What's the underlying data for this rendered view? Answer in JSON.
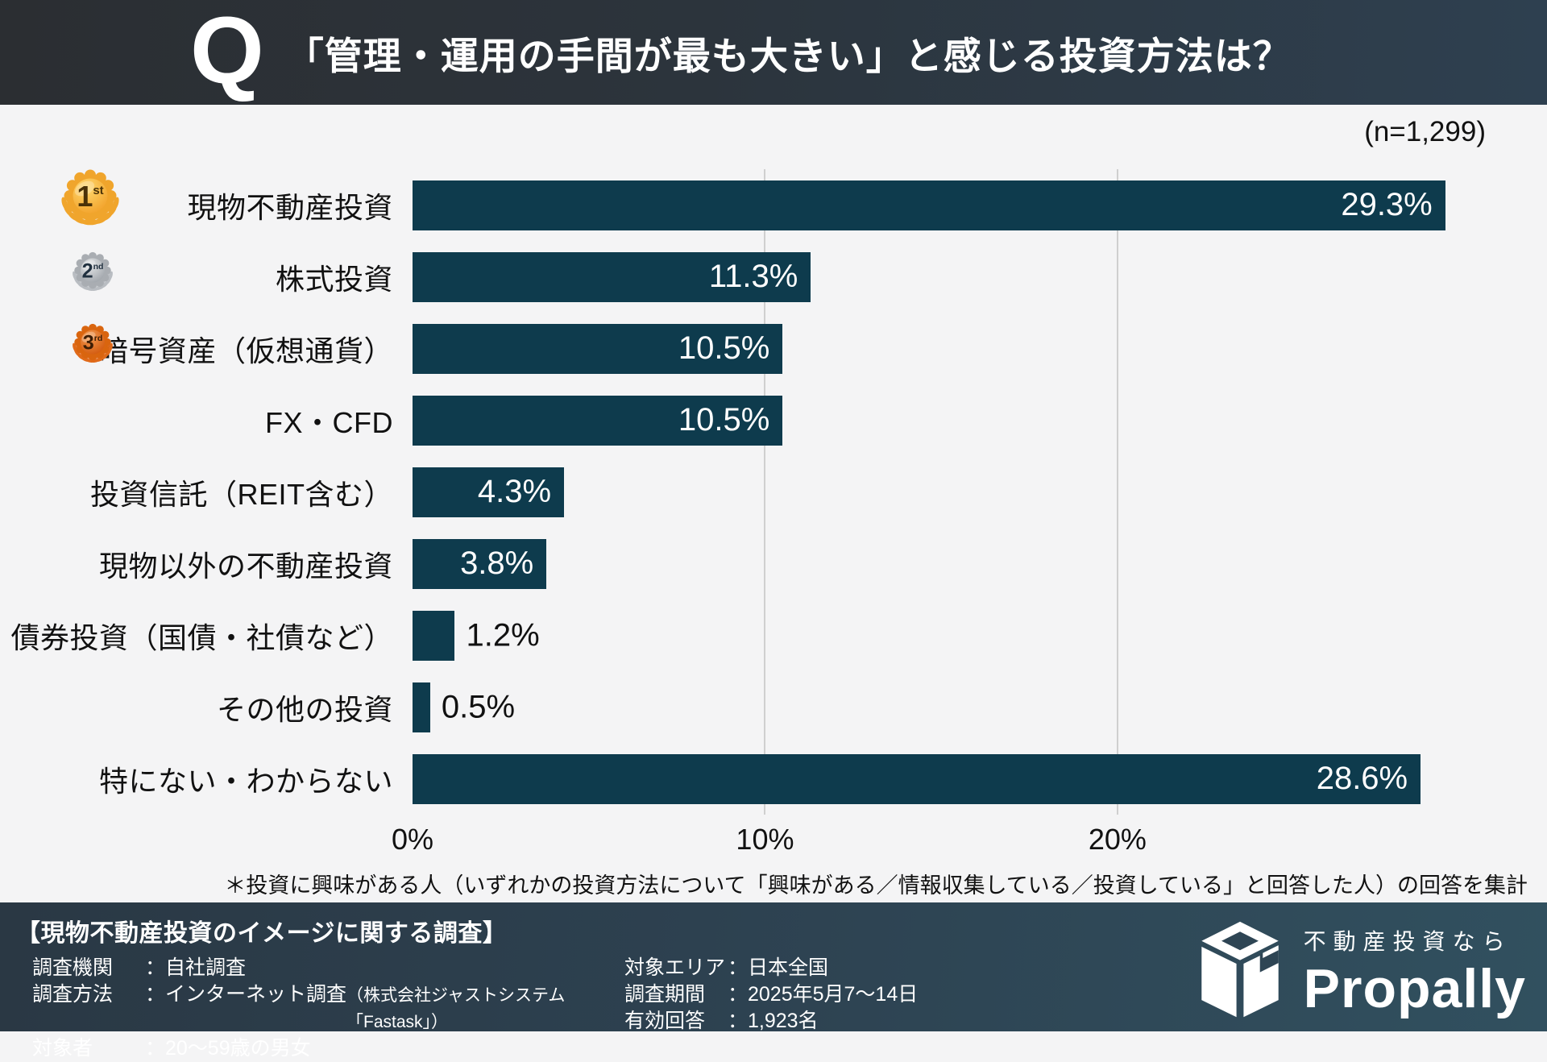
{
  "header": {
    "q_mark": "Q",
    "title": "「管理・運用の手間が最も大きい」と感じる投資方法は？"
  },
  "chart": {
    "sample_label": "(n=1,299)",
    "axis_max": 30.7,
    "bar_color": "#0e3b4d",
    "grid_color": "#cfcfcf",
    "ticks": [
      {
        "value": 0,
        "label": "0%"
      },
      {
        "value": 10,
        "label": "10%"
      },
      {
        "value": 20,
        "label": "20%"
      }
    ],
    "rows": [
      {
        "label": "現物不動産投資",
        "value": 29.3,
        "display": "29.3%",
        "medal": "gold",
        "rank": "1",
        "rank_suffix": "st"
      },
      {
        "label": "株式投資",
        "value": 11.3,
        "display": "11.3%",
        "medal": "silver",
        "rank": "2",
        "rank_suffix": "nd"
      },
      {
        "label": "暗号資産（仮想通貨）",
        "value": 10.5,
        "display": "10.5%",
        "medal": "bronze",
        "rank": "3",
        "rank_suffix": "rd"
      },
      {
        "label": "FX・CFD",
        "value": 10.5,
        "display": "10.5%"
      },
      {
        "label": "投資信託（REIT含む）",
        "value": 4.3,
        "display": "4.3%"
      },
      {
        "label": "現物以外の不動産投資",
        "value": 3.8,
        "display": "3.8%"
      },
      {
        "label": "債券投資（国債・社債など）",
        "value": 1.2,
        "display": "1.2%"
      },
      {
        "label": "その他の投資",
        "value": 0.5,
        "display": "0.5%"
      },
      {
        "label": "特にない・わからない",
        "value": 28.6,
        "display": "28.6%"
      }
    ],
    "medal_colors": {
      "gold": {
        "rim": "#f0a52c",
        "face_light": "#ffd96e",
        "face_dark": "#f2a12a",
        "leaf": "#ecא62e",
        "text": "#4a3208"
      },
      "silver": {
        "rim": "#a9adb2",
        "face_light": "#e4e6e8",
        "face_dark": "#9fa4aa",
        "leaf": "#b9bdc2",
        "text": "#20303f"
      },
      "bronze": {
        "rim": "#d9650f",
        "face_light": "#f29a50",
        "face_dark": "#d2590e",
        "leaf": "#e06a1a",
        "text": "#3c1d05"
      }
    },
    "footnote": "＊投資に興味がある人（いずれかの投資方法について「興味がある／情報収集している／投資している」と回答した人）の回答を集計"
  },
  "chart_data": {
    "type": "bar",
    "orientation": "horizontal",
    "title": "「管理・運用の手間が最も大きい」と感じる投資方法は？",
    "sample": "n=1,299",
    "categories": [
      "現物不動産投資",
      "株式投資",
      "暗号資産（仮想通貨）",
      "FX・CFD",
      "投資信託（REIT含む）",
      "現物以外の不動産投資",
      "債券投資（国債・社債など）",
      "その他の投資",
      "特にない・わからない"
    ],
    "values": [
      29.3,
      11.3,
      10.5,
      10.5,
      4.3,
      3.8,
      1.2,
      0.5,
      28.6
    ],
    "unit": "%",
    "xlabel": "",
    "ylabel": "",
    "xlim": [
      0,
      30.7
    ],
    "xticks": [
      "0%",
      "10%",
      "20%"
    ],
    "grid": "vertical-light",
    "legend": "none",
    "annotations": [
      "1st",
      "2nd",
      "3rd"
    ]
  },
  "footer": {
    "survey_title": "【現物不動産投資のイメージに関する調査】",
    "colon": "：",
    "left_items": [
      {
        "label": "調査機関",
        "value": "自社調査",
        "note": ""
      },
      {
        "label": "調査方法",
        "value": "インターネット調査",
        "note": "（株式会社ジャストシステム「Fastask」）"
      },
      {
        "label": "対象者",
        "value": "20〜59歳の男女",
        "note": ""
      }
    ],
    "right_items": [
      {
        "label": "対象エリア",
        "value": "日本全国",
        "note": ""
      },
      {
        "label": "調査期間",
        "value": "2025年5月7〜14日",
        "note": ""
      },
      {
        "label": "有効回答",
        "value": "1,923名",
        "note": ""
      }
    ],
    "logo": {
      "tagline": "不動産投資なら",
      "brand": "Propally"
    }
  }
}
